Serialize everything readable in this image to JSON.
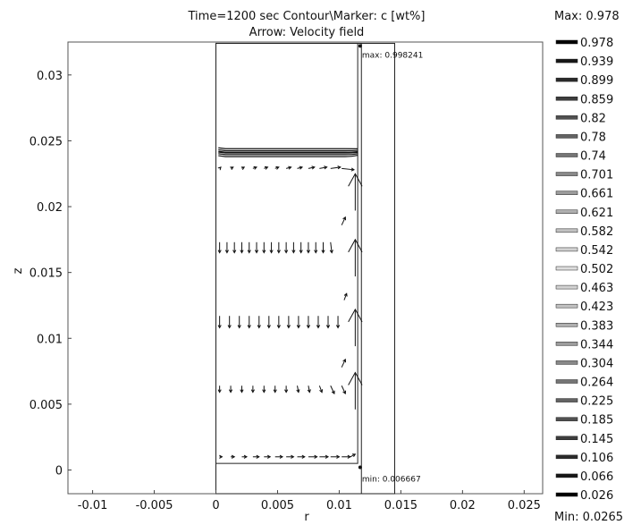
{
  "chart_data": {
    "type": "contour",
    "title_line1": "Time=1200 sec   Contour\\Marker: c [wt%]",
    "title_line2": "Arrow: Velocity field",
    "xlabel": "r",
    "ylabel": "z",
    "xlim": [
      -0.012,
      0.0265
    ],
    "ylim": [
      -0.0018,
      0.0325
    ],
    "x_ticks": [
      {
        "v": -0.01,
        "label": "-0.01"
      },
      {
        "v": -0.005,
        "label": "-0.005"
      },
      {
        "v": 0,
        "label": "0"
      },
      {
        "v": 0.005,
        "label": "0.005"
      },
      {
        "v": 0.01,
        "label": "0.01"
      },
      {
        "v": 0.015,
        "label": "0.015"
      },
      {
        "v": 0.02,
        "label": "0.02"
      },
      {
        "v": 0.025,
        "label": "0.025"
      }
    ],
    "y_ticks": [
      {
        "v": 0,
        "label": "0"
      },
      {
        "v": 0.005,
        "label": "0.005"
      },
      {
        "v": 0.01,
        "label": "0.01"
      },
      {
        "v": 0.015,
        "label": "0.015"
      },
      {
        "v": 0.02,
        "label": "0.02"
      },
      {
        "v": 0.025,
        "label": "0.025"
      },
      {
        "v": 0.03,
        "label": "0.03"
      }
    ],
    "geometry": {
      "domain": {
        "r0": 0,
        "r1": 0.0115,
        "z0": 0.0005,
        "z1": 0.0324
      },
      "inner_outline": {
        "r0": 0,
        "r1": 0.0118,
        "z0": -0.0018,
        "z1": 0.0324
      },
      "outer_outline": {
        "r0": 0,
        "r1": 0.0145,
        "z0": -0.0018,
        "z1": 0.0324
      }
    },
    "max_marker": {
      "r": 0.0117,
      "z": 0.0322,
      "label": "max: 0.998241"
    },
    "min_marker": {
      "r": 0.0117,
      "z": 0.0002,
      "label": "min: 0.006667"
    },
    "contour_band": {
      "z_values": [
        0.0238,
        0.02395,
        0.0241,
        0.02425,
        0.0244
      ],
      "r_start": 0.0002,
      "r_end": 0.0115
    },
    "arrow_rows": [
      {
        "z": 0.0229,
        "r": [
          0.0003,
          0.0012,
          0.0021,
          0.003,
          0.0039,
          0.0048,
          0.0057,
          0.0066,
          0.0075,
          0.0084,
          0.0093,
          0.0102
        ],
        "dr": [
          0.0001,
          0.0002,
          0.0002,
          0.0003,
          0.0003,
          0.0003,
          0.0004,
          0.0004,
          0.0005,
          0.0006,
          0.0008,
          0.001
        ],
        "dz": [
          0.0001,
          0.0001,
          0.0001,
          0.0001,
          0.0001,
          0.0001,
          0.0001,
          0.0001,
          0.0001,
          0.0001,
          0.0001,
          -0.0001
        ]
      },
      {
        "z": 0.0173,
        "r": [
          0.0003,
          0.0009,
          0.0015,
          0.0021,
          0.0027,
          0.0033,
          0.0039,
          0.0045,
          0.0051,
          0.0057,
          0.0063,
          0.0069,
          0.0075,
          0.0081,
          0.0087,
          0.0093
        ],
        "dr": [
          0,
          0,
          0,
          0,
          0,
          0,
          0,
          0,
          0,
          0,
          0,
          0,
          0,
          0,
          0,
          0.0001
        ],
        "dz": [
          -0.0008,
          -0.0008,
          -0.0008,
          -0.0008,
          -0.0008,
          -0.0008,
          -0.0008,
          -0.0008,
          -0.0008,
          -0.0008,
          -0.0008,
          -0.0008,
          -0.0008,
          -0.0008,
          -0.0008,
          -0.0008
        ]
      },
      {
        "z": 0.0117,
        "r": [
          0.0003,
          0.0011,
          0.0019,
          0.0027,
          0.0035,
          0.0043,
          0.0051,
          0.0059,
          0.0067,
          0.0075,
          0.0083,
          0.0091,
          0.0099
        ],
        "dr": [
          0,
          0,
          0,
          0,
          0,
          0,
          0,
          0,
          0,
          0,
          0,
          0,
          0
        ],
        "dz": [
          -0.0009,
          -0.0009,
          -0.0009,
          -0.0009,
          -0.0009,
          -0.0009,
          -0.0009,
          -0.0009,
          -0.0009,
          -0.0009,
          -0.0009,
          -0.0009,
          -0.0009
        ]
      },
      {
        "z": 0.0064,
        "r": [
          0.0003,
          0.0012,
          0.0021,
          0.003,
          0.0039,
          0.0048,
          0.0057,
          0.0066,
          0.0075,
          0.0084,
          0.0093,
          0.0102
        ],
        "dr": [
          0,
          0,
          0,
          0,
          0,
          0,
          0,
          0.0001,
          0.0001,
          0.0002,
          0.0003,
          0.0003
        ],
        "dz": [
          -0.0005,
          -0.0005,
          -0.0005,
          -0.0005,
          -0.0005,
          -0.0005,
          -0.0005,
          -0.0005,
          -0.0005,
          -0.0005,
          -0.0006,
          -0.0006
        ]
      },
      {
        "z": 0.001,
        "r": [
          0.0003,
          0.0012,
          0.0021,
          0.003,
          0.0039,
          0.0048,
          0.0057,
          0.0066,
          0.0075,
          0.0084,
          0.0093,
          0.0102,
          0.0109
        ],
        "dr": [
          0.0002,
          0.0003,
          0.0004,
          0.0005,
          0.0005,
          0.0006,
          0.0006,
          0.0006,
          0.0007,
          0.0007,
          0.0007,
          0.0007,
          0.0004
        ],
        "dz": [
          0,
          0,
          0,
          0,
          0,
          0,
          0,
          0,
          0,
          0,
          0,
          0,
          0.0002
        ]
      }
    ],
    "big_arrows": [
      {
        "r": 0.0113,
        "z": 0.0197,
        "dz": 0.0028
      },
      {
        "r": 0.0113,
        "z": 0.0147,
        "dz": 0.0028
      },
      {
        "r": 0.0113,
        "z": 0.0094,
        "dz": 0.0028
      },
      {
        "r": 0.0113,
        "z": 0.0046,
        "dz": 0.0028
      }
    ],
    "small_arrows": [
      {
        "r": 0.0102,
        "z": 0.0186,
        "dr": 0.0003,
        "dz": 0.0006
      },
      {
        "r": 0.0104,
        "z": 0.0129,
        "dr": 0.0002,
        "dz": 0.0005
      },
      {
        "r": 0.0102,
        "z": 0.0078,
        "dr": 0.0003,
        "dz": 0.0006
      }
    ],
    "colorbar": {
      "max_label": "Max: 0.978",
      "min_label": "Min: 0.0265",
      "levels": [
        "0.978",
        "0.939",
        "0.899",
        "0.859",
        "0.82",
        "0.78",
        "0.74",
        "0.701",
        "0.661",
        "0.621",
        "0.582",
        "0.542",
        "0.502",
        "0.463",
        "0.423",
        "0.383",
        "0.344",
        "0.304",
        "0.264",
        "0.225",
        "0.185",
        "0.145",
        "0.106",
        "0.066",
        "0.026"
      ],
      "level_grays": [
        "#000000",
        "#161616",
        "#2a2a2a",
        "#3d3d3d",
        "#505050",
        "#636363",
        "#767676",
        "#898989",
        "#9c9c9c",
        "#afafaf",
        "#c2c2c2",
        "#d2d2d2",
        "#dedede",
        "#d2d2d2",
        "#c2c2c2",
        "#afafaf",
        "#9c9c9c",
        "#898989",
        "#767676",
        "#636363",
        "#505050",
        "#3d3d3d",
        "#2a2a2a",
        "#161616",
        "#000000"
      ]
    }
  }
}
